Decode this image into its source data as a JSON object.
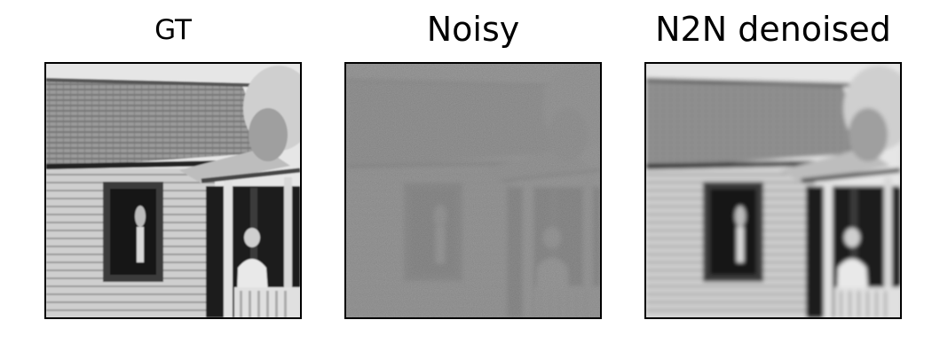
{
  "figure": {
    "panels": [
      {
        "title": "GT"
      },
      {
        "title": "Noisy"
      },
      {
        "title": "N2N denoised"
      }
    ]
  }
}
